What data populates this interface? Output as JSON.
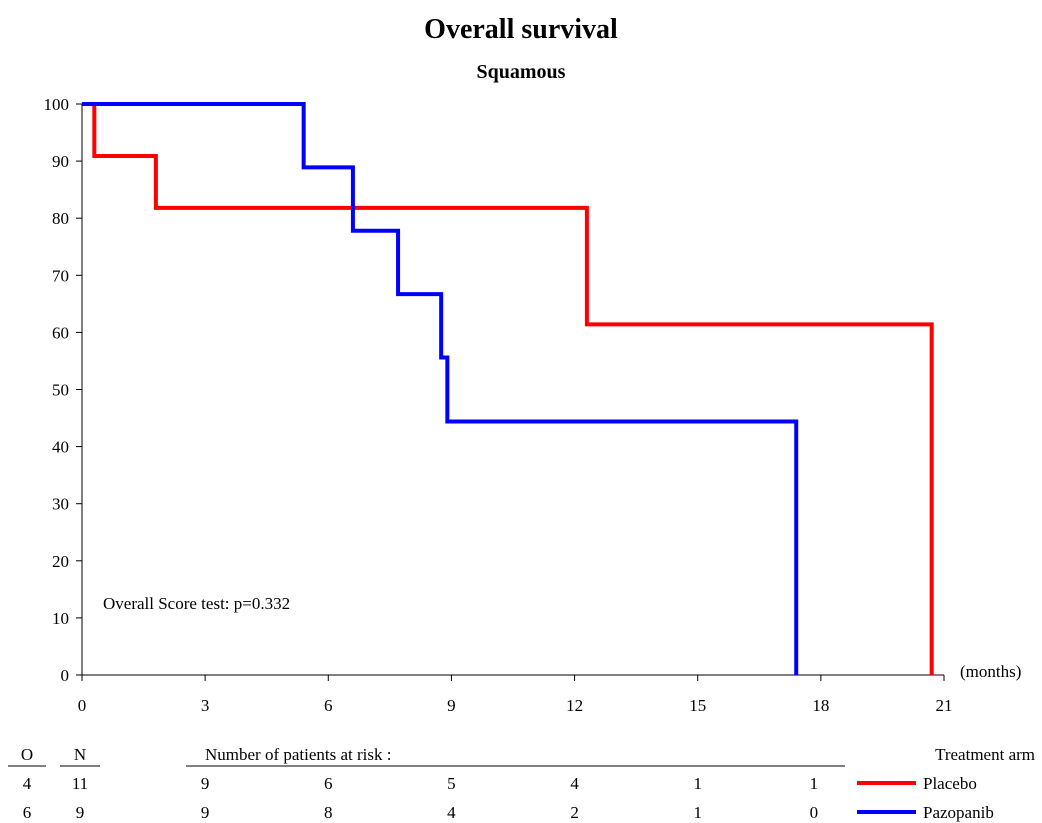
{
  "chart_data": {
    "type": "line",
    "title": "Overall survival",
    "subtitle": "Squamous",
    "xlabel": "(months)",
    "ylabel": "",
    "xlim": [
      0,
      21
    ],
    "ylim": [
      0,
      100
    ],
    "x_ticks": [
      0,
      3,
      6,
      9,
      12,
      15,
      18,
      21
    ],
    "y_ticks": [
      0,
      10,
      20,
      30,
      40,
      50,
      60,
      70,
      80,
      90,
      100
    ],
    "grid": false,
    "step": true,
    "annotation": "Overall Score test: p=0.332",
    "series": [
      {
        "name": "Placebo",
        "color": "#ff0000",
        "x": [
          0,
          0.3,
          1.8,
          12.3,
          20.7,
          20.7
        ],
        "y": [
          100,
          90.9,
          81.8,
          61.4,
          61.4,
          0
        ]
      },
      {
        "name": "Pazopanib",
        "color": "#0000ff",
        "x": [
          0,
          5.4,
          6.6,
          7.7,
          8.75,
          8.9,
          17.4,
          17.4
        ],
        "y": [
          100,
          88.9,
          77.8,
          66.7,
          55.6,
          44.4,
          44.4,
          0
        ]
      }
    ],
    "risk_table": {
      "observed_header": "O",
      "n_header": "N",
      "title": "Number of patients at risk :",
      "legend_title": "Treatment arm",
      "times": [
        3,
        6,
        9,
        12,
        15,
        18
      ],
      "rows": [
        {
          "observed": "4",
          "n": "11",
          "at_risk": [
            "9",
            "6",
            "5",
            "4",
            "1",
            "1"
          ],
          "label": "Placebo",
          "color": "#ff0000"
        },
        {
          "observed": "6",
          "n": "9",
          "at_risk": [
            "9",
            "8",
            "4",
            "2",
            "1",
            "0"
          ],
          "label": "Pazopanib",
          "color": "#0000ff"
        }
      ]
    }
  }
}
